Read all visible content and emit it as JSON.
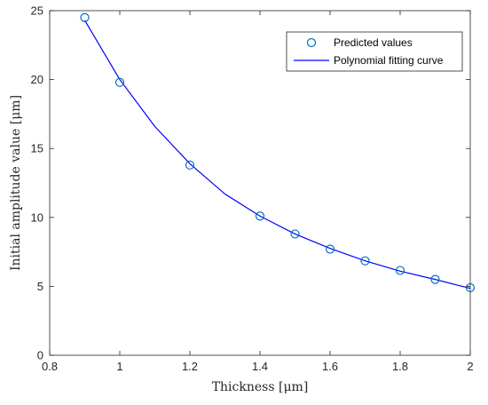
{
  "chart_data": {
    "type": "scatter",
    "title": "",
    "xlabel": "Thickness [μm]",
    "ylabel": "Initial amplitude value [μm]",
    "xlim": [
      0.8,
      2
    ],
    "ylim": [
      0,
      25
    ],
    "x_ticks": [
      0.8,
      1,
      1.2,
      1.4,
      1.6,
      1.8,
      2
    ],
    "y_ticks": [
      0,
      5,
      10,
      15,
      20,
      25
    ],
    "x_tick_labels": [
      "0.8",
      "1",
      "1.2",
      "1.4",
      "1.6",
      "1.8",
      "2"
    ],
    "y_tick_labels": [
      "0",
      "5",
      "10",
      "15",
      "20",
      "25"
    ],
    "grid": false,
    "legend_position": "top-right",
    "series": [
      {
        "name": "Predicted values",
        "kind": "markers",
        "marker": "circle-open",
        "color": "#0072BD",
        "x": [
          0.9,
          1.0,
          1.2,
          1.4,
          1.5,
          1.6,
          1.7,
          1.8,
          1.9,
          2.0
        ],
        "y": [
          24.5,
          19.8,
          13.8,
          10.1,
          8.8,
          7.7,
          6.85,
          6.15,
          5.5,
          4.9
        ]
      },
      {
        "name": "Polynomial fitting curve",
        "kind": "line",
        "color": "#0000FF",
        "x": [
          0.9,
          1.0,
          1.1,
          1.2,
          1.3,
          1.4,
          1.5,
          1.6,
          1.7,
          1.8,
          1.9,
          2.0
        ],
        "y": [
          24.3,
          20.0,
          16.6,
          13.9,
          11.7,
          10.1,
          8.8,
          7.75,
          6.85,
          6.1,
          5.5,
          4.85
        ]
      }
    ]
  }
}
